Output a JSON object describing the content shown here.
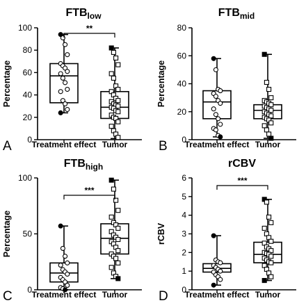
{
  "chart_data": [
    {
      "panel": "A",
      "type": "box",
      "title": "FTB",
      "title_sub": "low",
      "ylabel": "Percentage",
      "ylim": [
        0,
        100
      ],
      "yticks": [
        0,
        20,
        40,
        60,
        80,
        100
      ],
      "categories": [
        "Treatment effect",
        "Tumor"
      ],
      "significance": "**",
      "boxes": [
        {
          "min": 24,
          "q1": 33,
          "median": 57,
          "q3": 68,
          "max": 94
        },
        {
          "min": 1,
          "q1": 19,
          "median": 29,
          "q3": 43,
          "max": 82
        }
      ],
      "points": [
        [
          94,
          91,
          85,
          76,
          68,
          66,
          64,
          61,
          59,
          55,
          51,
          45,
          43,
          35,
          32,
          27,
          24
        ],
        [
          82,
          78,
          73,
          67,
          59,
          55,
          48,
          45,
          43,
          40,
          37,
          35,
          34,
          32,
          31,
          30,
          29,
          28,
          26,
          25,
          22,
          20,
          19,
          16,
          12,
          8,
          5,
          2
        ]
      ]
    },
    {
      "panel": "B",
      "type": "box",
      "title": "FTB",
      "title_sub": "mid",
      "ylabel": "Percentage",
      "ylim": [
        0,
        80
      ],
      "yticks": [
        0,
        20,
        40,
        60,
        80
      ],
      "categories": [
        "Treatment effect",
        "Tumor"
      ],
      "significance": "",
      "boxes": [
        {
          "min": 2,
          "q1": 15,
          "median": 27,
          "q3": 35,
          "max": 58
        },
        {
          "min": 1,
          "q1": 15,
          "median": 21,
          "q3": 25,
          "max": 61
        }
      ],
      "points": [
        [
          58,
          50,
          36,
          35,
          33,
          31,
          28,
          26,
          22,
          18,
          15,
          11,
          8,
          7,
          3,
          2
        ],
        [
          61,
          41,
          36,
          30,
          28,
          27,
          26,
          25,
          24,
          23,
          22,
          21,
          20,
          19,
          18,
          17,
          16,
          15,
          14,
          12,
          10,
          7,
          4,
          1
        ]
      ]
    },
    {
      "panel": "C",
      "type": "box",
      "title": "FTB",
      "title_sub": "high",
      "ylabel": "Percentage",
      "ylim": [
        0,
        100
      ],
      "yticks": [
        0,
        50,
        100
      ],
      "categories": [
        "Treatment effect",
        "Tumor"
      ],
      "significance": "***",
      "boxes": [
        {
          "min": 0,
          "q1": 7,
          "median": 15,
          "q3": 24,
          "max": 57
        },
        {
          "min": 10,
          "q1": 32,
          "median": 46,
          "q3": 59,
          "max": 98
        }
      ],
      "points": [
        [
          57,
          37,
          30,
          24,
          22,
          18,
          16,
          14,
          11,
          9,
          7,
          4,
          2,
          1,
          0
        ],
        [
          98,
          90,
          80,
          71,
          65,
          60,
          58,
          55,
          52,
          49,
          47,
          45,
          43,
          41,
          38,
          35,
          32,
          30,
          28,
          24,
          20,
          15,
          12,
          10
        ]
      ]
    },
    {
      "panel": "D",
      "type": "box",
      "title": "rCBV",
      "title_sub": "",
      "ylabel": "rCBV",
      "ylim": [
        0,
        6
      ],
      "yticks": [
        0,
        1,
        2,
        3,
        4,
        5,
        6
      ],
      "categories": [
        "Treatment effect",
        "Tumor"
      ],
      "significance": "***",
      "boxes": [
        {
          "min": 0.25,
          "q1": 0.95,
          "median": 1.15,
          "q3": 1.4,
          "max": 2.9
        },
        {
          "min": 0.5,
          "q1": 1.45,
          "median": 1.9,
          "q3": 2.55,
          "max": 4.85
        }
      ],
      "points": [
        [
          2.9,
          1.6,
          1.5,
          1.45,
          1.3,
          1.2,
          1.1,
          1.0,
          0.95,
          0.8,
          0.7,
          0.55,
          0.25
        ],
        [
          4.85,
          4.7,
          3.9,
          3.6,
          3.3,
          3.0,
          2.8,
          2.6,
          2.5,
          2.3,
          2.2,
          2.1,
          2.0,
          1.95,
          1.9,
          1.8,
          1.7,
          1.6,
          1.5,
          1.45,
          1.3,
          1.1,
          0.9,
          0.7,
          0.5
        ]
      ]
    }
  ]
}
